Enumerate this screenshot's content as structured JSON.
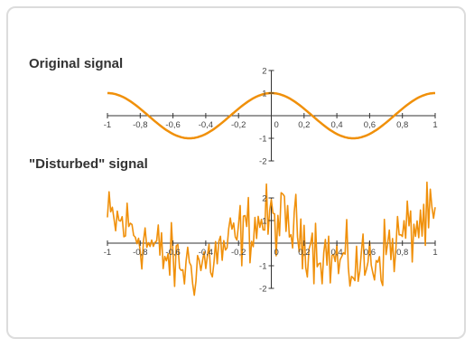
{
  "chart_data": [
    {
      "type": "line",
      "title": "Original signal",
      "xlim": [
        -1,
        1
      ],
      "ylim": [
        -2,
        2
      ],
      "x_ticks": [
        -1,
        -0.8,
        -0.6,
        -0.4,
        -0.2,
        0,
        0.2,
        0.4,
        0.6,
        0.8,
        1
      ],
      "x_tick_labels": [
        "-1",
        "-0,8",
        "-0,6",
        "-0,4",
        "-0,2",
        "0",
        "0,2",
        "0,4",
        "0,6",
        "0,8",
        "1"
      ],
      "y_ticks": [
        -2,
        -1,
        1,
        2
      ],
      "y_tick_labels": [
        "-2",
        "-1",
        "1",
        "2"
      ],
      "function": "cos(2*pi*x)",
      "color": "#f0900a"
    },
    {
      "type": "line",
      "title": "\"Disturbed\" signal",
      "xlim": [
        -1,
        1
      ],
      "ylim": [
        -2,
        2
      ],
      "x_ticks": [
        -1,
        -0.8,
        -0.6,
        -0.4,
        -0.2,
        0,
        0.2,
        0.4,
        0.6,
        0.8,
        1
      ],
      "x_tick_labels": [
        "-1",
        "-0,8",
        "-0,6",
        "-0,4",
        "-0,2",
        "0",
        "0,2",
        "0,4",
        "0,6",
        "0,8",
        "1"
      ],
      "y_ticks": [
        -2,
        -1,
        1,
        2
      ],
      "y_tick_labels": [
        "-2",
        "-1",
        "1",
        "2"
      ],
      "function": "cos(2*pi*x) + noise",
      "color": "#f0900a"
    }
  ]
}
